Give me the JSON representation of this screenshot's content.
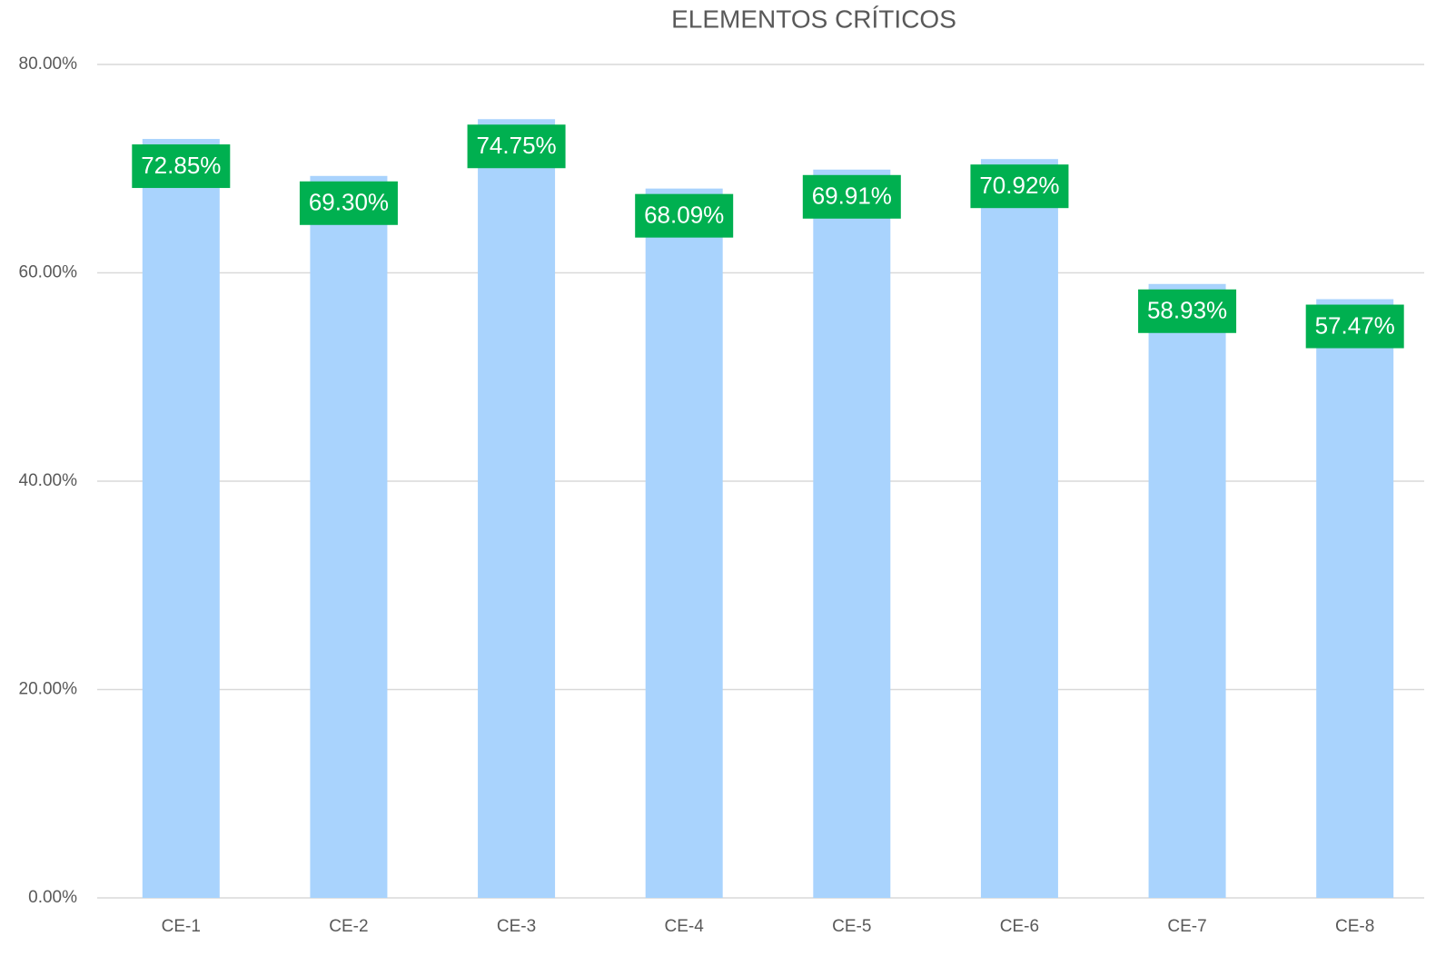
{
  "chart_data": {
    "type": "bar",
    "title": "ELEMENTOS CRÍTICOS",
    "categories": [
      "CE-1",
      "CE-2",
      "CE-3",
      "CE-4",
      "CE-5",
      "CE-6",
      "CE-7",
      "CE-8"
    ],
    "values": [
      72.85,
      69.3,
      74.75,
      68.09,
      69.91,
      70.92,
      58.93,
      57.47
    ],
    "value_labels": [
      "72.85%",
      "69.30%",
      "74.75%",
      "68.09%",
      "69.91%",
      "70.92%",
      "58.93%",
      "57.47%"
    ],
    "color": "#a9d3fd",
    "label_color": "#00b050",
    "ylim": [
      0,
      80
    ],
    "yticks": [
      {
        "value": 0,
        "label": "0.00%"
      },
      {
        "value": 20,
        "label": "20.00%"
      },
      {
        "value": 40,
        "label": "40.00%"
      },
      {
        "value": 60,
        "label": "60.00%"
      },
      {
        "value": 80,
        "label": "80.00%"
      }
    ],
    "grid": true
  }
}
